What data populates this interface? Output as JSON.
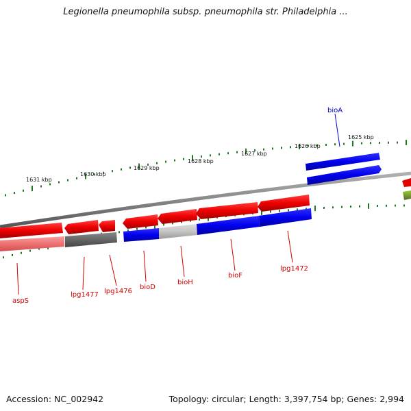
{
  "title": "Legionella pneumophila subsp. pneumophila str. Philadelphia ...",
  "footer": {
    "accession": "Accession: NC_002942",
    "topology": "Topology: circular; Length: 3,397,754 bp; Genes: 2,994"
  },
  "ruler": [
    {
      "label": "1631 kbp"
    },
    {
      "label": "1630 kbp"
    },
    {
      "label": "1629 kbp"
    },
    {
      "label": "1628 kbp"
    },
    {
      "label": "1627 kbp"
    },
    {
      "label": "1626 kbp"
    },
    {
      "label": "1625 kbp"
    }
  ],
  "gene_labels": [
    {
      "name": "bioA",
      "color": "#0000cc"
    },
    {
      "name": "aspS",
      "color": "#cc0000"
    },
    {
      "name": "lpg1477",
      "color": "#cc0000"
    },
    {
      "name": "lpg1476",
      "color": "#cc0000"
    },
    {
      "name": "bioD",
      "color": "#cc0000"
    },
    {
      "name": "bioH",
      "color": "#cc0000"
    },
    {
      "name": "bioF",
      "color": "#cc0000"
    },
    {
      "name": "lpg1472",
      "color": "#cc0000"
    }
  ],
  "colors": {
    "forward_cds": "#e00000",
    "reverse_cds": "#0000dd",
    "backbone": "#8a8a8a",
    "tick": "#1e7a1e",
    "pseudo": "#666666",
    "rna": "#6b8e23"
  }
}
